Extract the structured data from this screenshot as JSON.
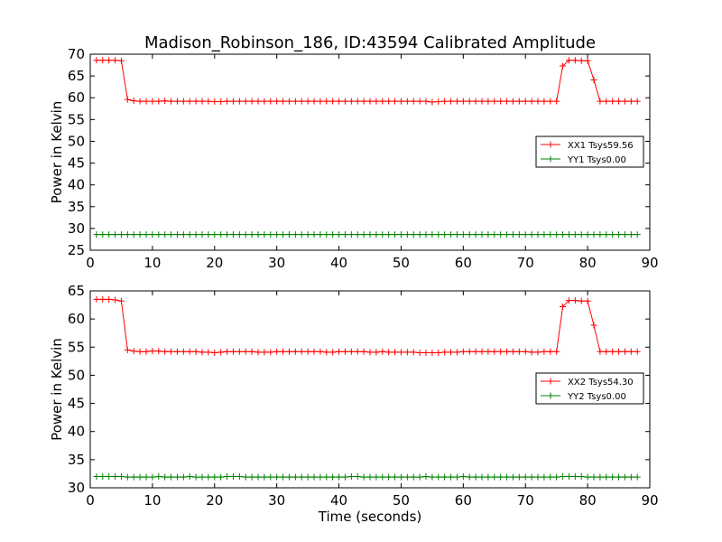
{
  "chart_data": {
    "title": "Madison_Robinson_186, ID:43594 Calibrated Amplitude",
    "panels": [
      {
        "type": "line",
        "ylabel": "Power in Kelvin",
        "xlabel": "",
        "xlim": [
          0,
          90
        ],
        "ylim": [
          25,
          70
        ],
        "xticks": [
          0,
          10,
          20,
          30,
          40,
          50,
          60,
          70,
          80,
          90
        ],
        "yticks": [
          25,
          30,
          35,
          40,
          45,
          50,
          55,
          60,
          65,
          70
        ],
        "legend_position": "right",
        "series": [
          {
            "name": "XX1 Tsys59.56",
            "color": "#ff0000",
            "x": [
              1,
              2,
              3,
              4,
              5,
              6,
              7,
              8,
              9,
              10,
              11,
              12,
              13,
              14,
              15,
              16,
              17,
              18,
              19,
              20,
              21,
              22,
              23,
              24,
              25,
              26,
              27,
              28,
              29,
              30,
              31,
              32,
              33,
              34,
              35,
              36,
              37,
              38,
              39,
              40,
              41,
              42,
              43,
              44,
              45,
              46,
              47,
              48,
              49,
              50,
              51,
              52,
              53,
              54,
              55,
              56,
              57,
              58,
              59,
              60,
              61,
              62,
              63,
              64,
              65,
              66,
              67,
              68,
              69,
              70,
              71,
              72,
              73,
              74,
              75,
              76,
              77,
              78,
              79,
              80,
              81,
              82,
              83,
              84,
              85,
              86,
              87,
              88
            ],
            "y": [
              68.6,
              68.6,
              68.6,
              68.6,
              68.5,
              59.6,
              59.3,
              59.2,
              59.2,
              59.2,
              59.2,
              59.3,
              59.2,
              59.2,
              59.2,
              59.2,
              59.2,
              59.2,
              59.2,
              59.1,
              59.1,
              59.2,
              59.2,
              59.2,
              59.2,
              59.2,
              59.2,
              59.2,
              59.2,
              59.2,
              59.2,
              59.2,
              59.2,
              59.2,
              59.2,
              59.2,
              59.2,
              59.2,
              59.2,
              59.2,
              59.2,
              59.2,
              59.2,
              59.2,
              59.2,
              59.2,
              59.2,
              59.2,
              59.2,
              59.2,
              59.2,
              59.2,
              59.2,
              59.2,
              59.0,
              59.1,
              59.2,
              59.2,
              59.2,
              59.2,
              59.2,
              59.2,
              59.2,
              59.2,
              59.2,
              59.2,
              59.2,
              59.2,
              59.2,
              59.2,
              59.2,
              59.2,
              59.2,
              59.2,
              59.2,
              67.3,
              68.6,
              68.6,
              68.5,
              68.5,
              64.1,
              59.2,
              59.2,
              59.2,
              59.2,
              59.2,
              59.2,
              59.2
            ]
          },
          {
            "name": "YY1 Tsys0.00",
            "color": "#008000",
            "x": [
              1,
              2,
              3,
              4,
              5,
              6,
              7,
              8,
              9,
              10,
              11,
              12,
              13,
              14,
              15,
              16,
              17,
              18,
              19,
              20,
              21,
              22,
              23,
              24,
              25,
              26,
              27,
              28,
              29,
              30,
              31,
              32,
              33,
              34,
              35,
              36,
              37,
              38,
              39,
              40,
              41,
              42,
              43,
              44,
              45,
              46,
              47,
              48,
              49,
              50,
              51,
              52,
              53,
              54,
              55,
              56,
              57,
              58,
              59,
              60,
              61,
              62,
              63,
              64,
              65,
              66,
              67,
              68,
              69,
              70,
              71,
              72,
              73,
              74,
              75,
              76,
              77,
              78,
              79,
              80,
              81,
              82,
              83,
              84,
              85,
              86,
              87,
              88
            ],
            "y": [
              28.6,
              28.6,
              28.6,
              28.6,
              28.6,
              28.6,
              28.6,
              28.6,
              28.6,
              28.6,
              28.6,
              28.6,
              28.6,
              28.6,
              28.6,
              28.6,
              28.6,
              28.6,
              28.6,
              28.6,
              28.6,
              28.6,
              28.6,
              28.6,
              28.6,
              28.6,
              28.6,
              28.6,
              28.6,
              28.6,
              28.6,
              28.6,
              28.6,
              28.6,
              28.6,
              28.6,
              28.6,
              28.6,
              28.6,
              28.6,
              28.6,
              28.6,
              28.6,
              28.6,
              28.6,
              28.6,
              28.6,
              28.6,
              28.6,
              28.6,
              28.6,
              28.6,
              28.6,
              28.6,
              28.6,
              28.6,
              28.6,
              28.6,
              28.6,
              28.6,
              28.6,
              28.6,
              28.6,
              28.6,
              28.6,
              28.6,
              28.6,
              28.6,
              28.6,
              28.6,
              28.6,
              28.6,
              28.6,
              28.6,
              28.6,
              28.6,
              28.6,
              28.6,
              28.6,
              28.6,
              28.6,
              28.6,
              28.6,
              28.6,
              28.6,
              28.6,
              28.6,
              28.6
            ]
          }
        ]
      },
      {
        "type": "line",
        "ylabel": "Power in Kelvin",
        "xlabel": "Time (seconds)",
        "xlim": [
          0,
          90
        ],
        "ylim": [
          30,
          65
        ],
        "xticks": [
          0,
          10,
          20,
          30,
          40,
          50,
          60,
          70,
          80,
          90
        ],
        "yticks": [
          30,
          35,
          40,
          45,
          50,
          55,
          60,
          65
        ],
        "legend_position": "right",
        "series": [
          {
            "name": "XX2 Tsys54.30",
            "color": "#ff0000",
            "x": [
              1,
              2,
              3,
              4,
              5,
              6,
              7,
              8,
              9,
              10,
              11,
              12,
              13,
              14,
              15,
              16,
              17,
              18,
              19,
              20,
              21,
              22,
              23,
              24,
              25,
              26,
              27,
              28,
              29,
              30,
              31,
              32,
              33,
              34,
              35,
              36,
              37,
              38,
              39,
              40,
              41,
              42,
              43,
              44,
              45,
              46,
              47,
              48,
              49,
              50,
              51,
              52,
              53,
              54,
              55,
              56,
              57,
              58,
              59,
              60,
              61,
              62,
              63,
              64,
              65,
              66,
              67,
              68,
              69,
              70,
              71,
              72,
              73,
              74,
              75,
              76,
              77,
              78,
              79,
              80,
              81,
              82,
              83,
              84,
              85,
              86,
              87,
              88
            ],
            "y": [
              63.5,
              63.5,
              63.5,
              63.4,
              63.2,
              54.5,
              54.3,
              54.2,
              54.2,
              54.3,
              54.3,
              54.2,
              54.2,
              54.2,
              54.2,
              54.2,
              54.2,
              54.1,
              54.1,
              54.0,
              54.1,
              54.2,
              54.2,
              54.2,
              54.2,
              54.2,
              54.1,
              54.1,
              54.1,
              54.2,
              54.2,
              54.2,
              54.2,
              54.2,
              54.2,
              54.2,
              54.2,
              54.1,
              54.1,
              54.2,
              54.2,
              54.2,
              54.2,
              54.2,
              54.1,
              54.1,
              54.2,
              54.1,
              54.1,
              54.1,
              54.1,
              54.1,
              54.0,
              54.0,
              54.0,
              54.0,
              54.1,
              54.1,
              54.1,
              54.2,
              54.2,
              54.2,
              54.2,
              54.2,
              54.2,
              54.2,
              54.2,
              54.2,
              54.2,
              54.2,
              54.1,
              54.1,
              54.2,
              54.2,
              54.2,
              62.2,
              63.3,
              63.3,
              63.2,
              63.2,
              58.9,
              54.2,
              54.2,
              54.2,
              54.2,
              54.2,
              54.2,
              54.2
            ]
          },
          {
            "name": "YY2 Tsys0.00",
            "color": "#008000",
            "x": [
              1,
              2,
              3,
              4,
              5,
              6,
              7,
              8,
              9,
              10,
              11,
              12,
              13,
              14,
              15,
              16,
              17,
              18,
              19,
              20,
              21,
              22,
              23,
              24,
              25,
              26,
              27,
              28,
              29,
              30,
              31,
              32,
              33,
              34,
              35,
              36,
              37,
              38,
              39,
              40,
              41,
              42,
              43,
              44,
              45,
              46,
              47,
              48,
              49,
              50,
              51,
              52,
              53,
              54,
              55,
              56,
              57,
              58,
              59,
              60,
              61,
              62,
              63,
              64,
              65,
              66,
              67,
              68,
              69,
              70,
              71,
              72,
              73,
              74,
              75,
              76,
              77,
              78,
              79,
              80,
              81,
              82,
              83,
              84,
              85,
              86,
              87,
              88
            ],
            "y": [
              32.0,
              32.0,
              32.0,
              32.0,
              32.0,
              31.9,
              31.9,
              31.9,
              31.9,
              31.9,
              32.0,
              31.9,
              31.9,
              31.9,
              31.9,
              32.0,
              31.9,
              31.9,
              31.9,
              31.9,
              31.9,
              32.0,
              32.0,
              32.0,
              31.9,
              31.9,
              31.9,
              31.9,
              31.9,
              31.9,
              31.9,
              31.9,
              31.9,
              31.9,
              31.9,
              31.9,
              31.9,
              31.9,
              31.9,
              31.9,
              31.9,
              32.0,
              32.0,
              31.9,
              31.9,
              31.9,
              31.9,
              31.9,
              31.9,
              31.9,
              31.9,
              31.9,
              31.9,
              32.0,
              31.9,
              31.9,
              31.9,
              31.9,
              31.9,
              32.0,
              31.9,
              31.9,
              31.9,
              31.9,
              31.9,
              31.9,
              31.9,
              31.9,
              31.9,
              31.9,
              31.9,
              31.9,
              31.9,
              31.9,
              31.9,
              32.0,
              32.0,
              32.0,
              32.0,
              31.9,
              31.9,
              31.9,
              31.9,
              31.9,
              31.9,
              31.9,
              31.9,
              31.9
            ]
          }
        ]
      }
    ]
  }
}
